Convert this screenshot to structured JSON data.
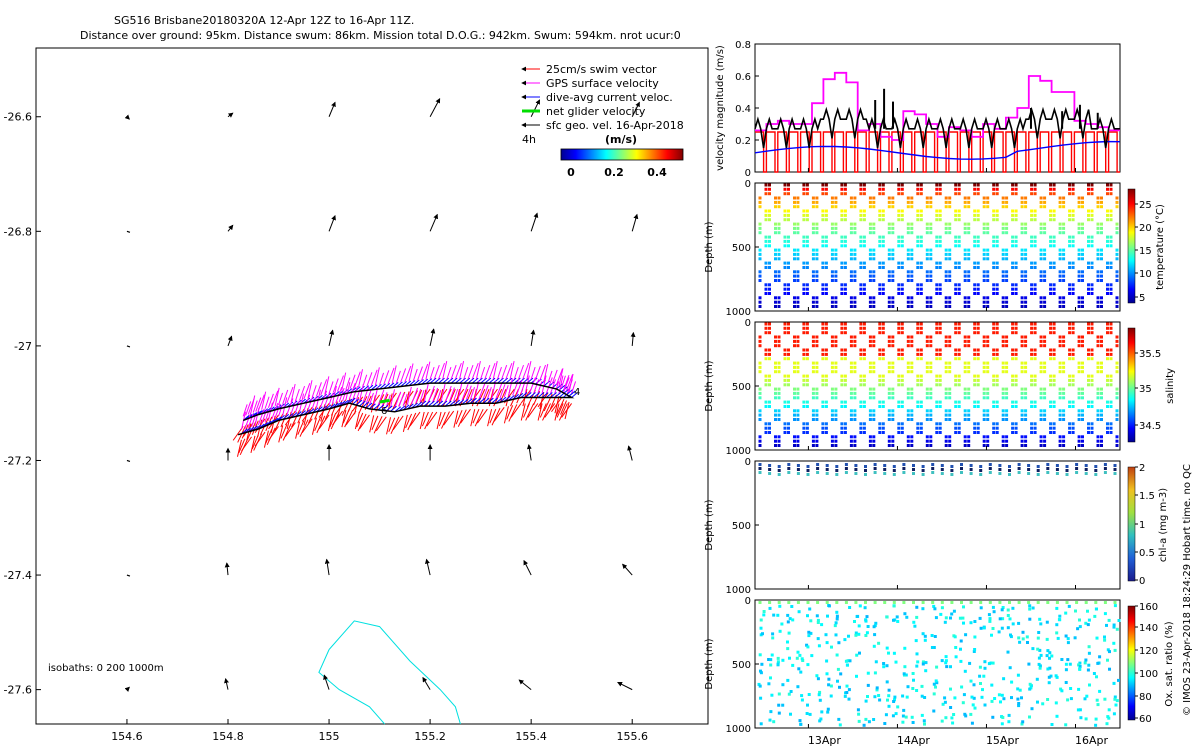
{
  "header": {
    "title_line1": "SG516 Brisbane20180320A 12-Apr 12Z to 16-Apr 11Z.",
    "title_line2": "Distance over ground: 95km. Distance swum: 86km. Mission total D.O.G.: 942km. Swum: 594km. nrot ucur:0"
  },
  "map": {
    "type": "scatter",
    "lon_ticks": [
      "154.6",
      "154.8",
      "155",
      "155.2",
      "155.4",
      "155.6"
    ],
    "lat_ticks": [
      "-26.6",
      "-26.8",
      "-27",
      "-27.2",
      "-27.4",
      "-27.6"
    ],
    "xlim": [
      154.42,
      155.75
    ],
    "ylim": [
      -27.66,
      -26.48
    ],
    "legend": [
      {
        "label": "25cm/s swim vector",
        "color": "#ff0000"
      },
      {
        "label": "GPS surface velocity",
        "color": "#ff00ff"
      },
      {
        "label": "dive-avg current veloc.",
        "color": "#0000ff"
      },
      {
        "label": "net glider velocity",
        "color": "#00dd00"
      },
      {
        "label": "sfc geo. vel. 16-Apr-2018",
        "color": "#000000"
      }
    ],
    "scale_label": "4h",
    "colorbar_title": "(m/s)",
    "colorbar_ticks": [
      "0",
      "0.2",
      "0.4"
    ],
    "track_labels": [
      "6",
      "4"
    ],
    "isobath_label": "isobaths: 0   200  1000m",
    "geo_vectors": [
      {
        "lon": 154.6,
        "lat": -26.6,
        "u": 0.02,
        "v": -0.02
      },
      {
        "lon": 154.8,
        "lat": -26.6,
        "u": 0.04,
        "v": 0.03
      },
      {
        "lon": 155.0,
        "lat": -26.6,
        "u": 0.05,
        "v": 0.12
      },
      {
        "lon": 155.2,
        "lat": -26.6,
        "u": 0.08,
        "v": 0.15
      },
      {
        "lon": 155.4,
        "lat": -26.6,
        "u": 0.07,
        "v": 0.14
      },
      {
        "lon": 155.6,
        "lat": -26.6,
        "u": 0.06,
        "v": 0.12
      },
      {
        "lon": 154.6,
        "lat": -26.8,
        "u": 0.02,
        "v": -0.01
      },
      {
        "lon": 154.8,
        "lat": -26.8,
        "u": 0.04,
        "v": 0.05
      },
      {
        "lon": 155.0,
        "lat": -26.8,
        "u": 0.05,
        "v": 0.13
      },
      {
        "lon": 155.2,
        "lat": -26.8,
        "u": 0.06,
        "v": 0.14
      },
      {
        "lon": 155.4,
        "lat": -26.8,
        "u": 0.05,
        "v": 0.15
      },
      {
        "lon": 155.6,
        "lat": -26.8,
        "u": 0.04,
        "v": 0.14
      },
      {
        "lon": 154.6,
        "lat": -27.0,
        "u": 0.02,
        "v": 0.0
      },
      {
        "lon": 154.8,
        "lat": -27.0,
        "u": 0.03,
        "v": 0.08
      },
      {
        "lon": 155.0,
        "lat": -27.0,
        "u": 0.03,
        "v": 0.13
      },
      {
        "lon": 155.2,
        "lat": -27.0,
        "u": 0.03,
        "v": 0.14
      },
      {
        "lon": 155.4,
        "lat": -27.0,
        "u": 0.02,
        "v": 0.13
      },
      {
        "lon": 155.6,
        "lat": -27.0,
        "u": 0.01,
        "v": 0.11
      },
      {
        "lon": 154.6,
        "lat": -27.2,
        "u": 0.01,
        "v": -0.01
      },
      {
        "lon": 154.8,
        "lat": -27.2,
        "u": 0.0,
        "v": 0.1
      },
      {
        "lon": 155.0,
        "lat": -27.2,
        "u": 0.0,
        "v": 0.13
      },
      {
        "lon": 155.2,
        "lat": -27.2,
        "u": 0.0,
        "v": 0.13
      },
      {
        "lon": 155.4,
        "lat": -27.2,
        "u": -0.02,
        "v": 0.13
      },
      {
        "lon": 155.6,
        "lat": -27.2,
        "u": -0.03,
        "v": 0.12
      },
      {
        "lon": 154.6,
        "lat": -27.4,
        "u": 0.01,
        "v": 0.02
      },
      {
        "lon": 154.8,
        "lat": -27.4,
        "u": -0.01,
        "v": 0.1
      },
      {
        "lon": 155.0,
        "lat": -27.4,
        "u": -0.02,
        "v": 0.13
      },
      {
        "lon": 155.2,
        "lat": -27.4,
        "u": -0.03,
        "v": 0.13
      },
      {
        "lon": 155.4,
        "lat": -27.4,
        "u": -0.06,
        "v": 0.12
      },
      {
        "lon": 155.6,
        "lat": -27.4,
        "u": -0.08,
        "v": 0.09
      },
      {
        "lon": 154.6,
        "lat": -27.6,
        "u": 0.02,
        "v": 0.02
      },
      {
        "lon": 154.8,
        "lat": -27.6,
        "u": -0.02,
        "v": 0.09
      },
      {
        "lon": 155.0,
        "lat": -27.6,
        "u": -0.04,
        "v": 0.12
      },
      {
        "lon": 155.2,
        "lat": -27.6,
        "u": -0.06,
        "v": 0.1
      },
      {
        "lon": 155.4,
        "lat": -27.6,
        "u": -0.1,
        "v": 0.08
      },
      {
        "lon": 155.6,
        "lat": -27.6,
        "u": -0.12,
        "v": 0.06
      }
    ],
    "track": [
      {
        "lon": 154.83,
        "lat": -27.13
      },
      {
        "lon": 154.86,
        "lat": -27.12
      },
      {
        "lon": 154.9,
        "lat": -27.11
      },
      {
        "lon": 154.95,
        "lat": -27.1
      },
      {
        "lon": 155.0,
        "lat": -27.09
      },
      {
        "lon": 155.05,
        "lat": -27.08
      },
      {
        "lon": 155.1,
        "lat": -27.075
      },
      {
        "lon": 155.15,
        "lat": -27.07
      },
      {
        "lon": 155.2,
        "lat": -27.065
      },
      {
        "lon": 155.25,
        "lat": -27.065
      },
      {
        "lon": 155.3,
        "lat": -27.065
      },
      {
        "lon": 155.35,
        "lat": -27.065
      },
      {
        "lon": 155.4,
        "lat": -27.065
      },
      {
        "lon": 155.45,
        "lat": -27.075
      },
      {
        "lon": 155.48,
        "lat": -27.09
      },
      {
        "lon": 155.43,
        "lat": -27.09
      },
      {
        "lon": 155.38,
        "lat": -27.09
      },
      {
        "lon": 155.33,
        "lat": -27.1
      },
      {
        "lon": 155.28,
        "lat": -27.1
      },
      {
        "lon": 155.23,
        "lat": -27.105
      },
      {
        "lon": 155.18,
        "lat": -27.105
      },
      {
        "lon": 155.13,
        "lat": -27.115
      },
      {
        "lon": 155.08,
        "lat": -27.11
      },
      {
        "lon": 155.04,
        "lat": -27.1
      },
      {
        "lon": 155.0,
        "lat": -27.11
      },
      {
        "lon": 154.95,
        "lat": -27.12
      },
      {
        "lon": 154.9,
        "lat": -27.13
      },
      {
        "lon": 154.86,
        "lat": -27.145
      },
      {
        "lon": 154.82,
        "lat": -27.155
      }
    ],
    "isobath_cyan": [
      {
        "lon": 155.0,
        "lat": -27.53
      },
      {
        "lon": 155.05,
        "lat": -27.48
      },
      {
        "lon": 155.1,
        "lat": -27.49
      },
      {
        "lon": 155.16,
        "lat": -27.55
      },
      {
        "lon": 155.22,
        "lat": -27.6
      },
      {
        "lon": 155.25,
        "lat": -27.63
      },
      {
        "lon": 155.26,
        "lat": -27.66
      }
    ],
    "isobath_cyan2": [
      {
        "lon": 155.0,
        "lat": -27.53
      },
      {
        "lon": 154.98,
        "lat": -27.57
      },
      {
        "lon": 155.02,
        "lat": -27.6
      },
      {
        "lon": 155.08,
        "lat": -27.63
      },
      {
        "lon": 155.11,
        "lat": -27.66
      }
    ]
  },
  "panels": {
    "velocity": {
      "type": "line",
      "ylabel": "velocity magnitude (m/s)",
      "yticks": [
        "0",
        "0.2",
        "0.4",
        "0.6",
        "0.8"
      ],
      "ylim": [
        0,
        0.8
      ],
      "gps_steps": [
        0.26,
        0.3,
        0.32,
        0.3,
        0.3,
        0.43,
        0.58,
        0.62,
        0.56,
        0.26,
        0.3,
        0.22,
        0.2,
        0.38,
        0.36,
        0.3,
        0.22,
        0.28,
        0.26,
        0.22,
        0.3,
        0.27,
        0.34,
        0.4,
        0.6,
        0.57,
        0.5,
        0.5,
        0.32,
        0.3,
        0.28,
        0.26
      ]
    },
    "temperature": {
      "type": "scatter",
      "ylabel": "Depth (m)",
      "cbar_label": "temperature (°C)",
      "cbar_ticks": [
        "5",
        "10",
        "15",
        "20",
        "25"
      ],
      "yticks": [
        "0",
        "500",
        "1000"
      ]
    },
    "salinity": {
      "type": "scatter",
      "ylabel": "Depth (m)",
      "cbar_label": "salinity",
      "cbar_ticks": [
        "34.5",
        "35",
        "35.5"
      ],
      "yticks": [
        "0",
        "500",
        "1000"
      ]
    },
    "chla": {
      "type": "scatter",
      "ylabel": "Depth (m)",
      "cbar_label": "chl-a (mg m-3)",
      "cbar_ticks": [
        "0",
        "0.5",
        "1",
        "1.5",
        "2"
      ],
      "yticks": [
        "0",
        "500",
        "1000"
      ]
    },
    "oxygen": {
      "type": "scatter",
      "ylabel": "Depth (m)",
      "cbar_label": "Ox. sat. ratio (%)",
      "cbar_ticks": [
        "60",
        "80",
        "100",
        "120",
        "140",
        "160"
      ],
      "yticks": [
        "0",
        "500",
        "1000"
      ]
    },
    "xticks": [
      "13Apr",
      "14Apr",
      "15Apr",
      "16Apr"
    ],
    "credit": "© IMOS 23-Apr-2018 18:24:29 Hobart time. no QC"
  }
}
